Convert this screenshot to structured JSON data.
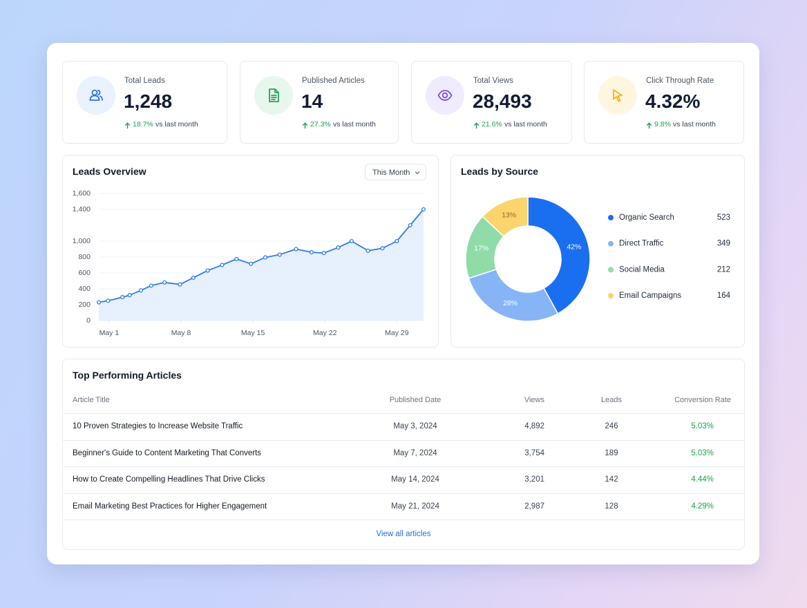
{
  "kpis": [
    {
      "label": "Total Leads",
      "value": "1,248",
      "change": "18.7%",
      "note": "vs last month"
    },
    {
      "label": "Published Articles",
      "value": "14",
      "change": "27.3%",
      "note": "vs last month"
    },
    {
      "label": "Total Views",
      "value": "28,493",
      "change": "21.6%",
      "note": "vs last month"
    },
    {
      "label": "Click Through Rate",
      "value": "4.32%",
      "change": "9.8%",
      "note": "vs last month"
    }
  ],
  "chart_data": [
    {
      "type": "line",
      "title": "Leads Overview",
      "filter": "This Month",
      "x": [
        0,
        0.9,
        2.3,
        3,
        4.1,
        5.1,
        6.4,
        7.9,
        9.2,
        10.6,
        12,
        13.4,
        14.8,
        16.2,
        17.6,
        19.2,
        20.7,
        21.9,
        23.3,
        24.6,
        26.2,
        27.6,
        29,
        30.3,
        31.6
      ],
      "values": [
        230,
        250,
        295,
        320,
        380,
        440,
        480,
        455,
        540,
        630,
        700,
        775,
        715,
        795,
        830,
        900,
        860,
        850,
        920,
        1000,
        880,
        910,
        1000,
        1200,
        1400
      ],
      "color": "#2f7be5",
      "xlim": [
        0,
        31.6
      ],
      "xticks": [
        {
          "value": 1,
          "label": "May 1"
        },
        {
          "value": 8,
          "label": "May 8"
        },
        {
          "value": 15,
          "label": "May 15"
        },
        {
          "value": 22,
          "label": "May 22"
        },
        {
          "value": 29,
          "label": "May 29"
        }
      ],
      "ylim": [
        0,
        1600
      ],
      "yticks": [
        0,
        200,
        400,
        600,
        800,
        {
          "value": 1000,
          "label": "1,000"
        },
        {
          "value": 1400,
          "label": "1,400"
        },
        {
          "value": 1600,
          "label": "1,600"
        }
      ],
      "grid": true
    },
    {
      "type": "pie",
      "title": "Leads by Source",
      "donut": true,
      "categories": [
        "Organic Search",
        "Direct Traffic",
        "Social Media",
        "Email Campaigns"
      ],
      "values": [
        42,
        28,
        17,
        13
      ],
      "value_labels": [
        "42%",
        "28%",
        "17%",
        "13%"
      ],
      "counts": [
        523,
        349,
        212,
        164
      ],
      "colors": [
        "#1a6ff0",
        "#86b4f5",
        "#8fdca8",
        "#fbd46e"
      ]
    }
  ],
  "table": {
    "title": "Top Performing Articles",
    "columns": [
      "Article Title",
      "Published Date",
      "Views",
      "Leads",
      "Conversion Rate"
    ],
    "rows": [
      [
        "10 Proven Strategies to Increase Website Traffic",
        "May 3, 2024",
        "4,892",
        "246",
        "5.03%"
      ],
      [
        "Beginner's Guide to Content Marketing That Converts",
        "May 7, 2024",
        "3,754",
        "189",
        "5.03%"
      ],
      [
        "How to Create Compelling Headlines That Drive Clicks",
        "May 14, 2024",
        "3,201",
        "142",
        "4.44%"
      ],
      [
        "Email Marketing Best Practices for Higher Engagement",
        "May 21, 2024",
        "2,987",
        "128",
        "4.29%"
      ]
    ],
    "footer": "View all articles"
  }
}
